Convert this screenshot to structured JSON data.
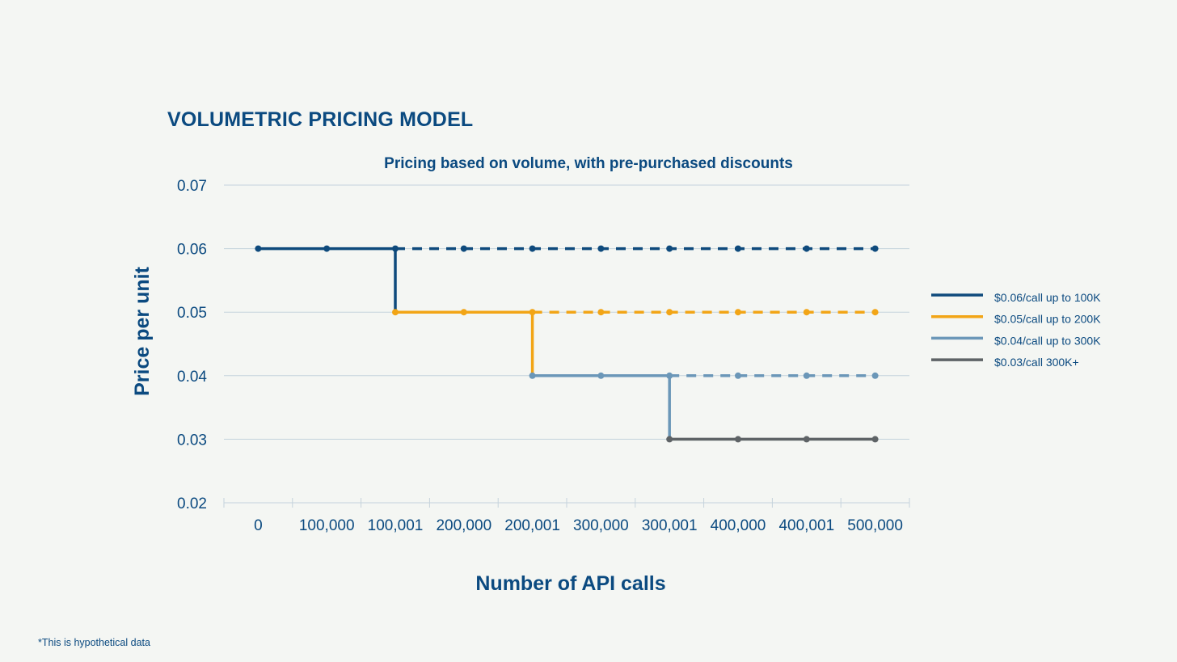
{
  "page": {
    "title": "VOLUMETRIC PRICING MODEL",
    "footnote": "*This is hypothetical data"
  },
  "colors": {
    "background": "#f4f6f3",
    "text": "#0b4a80",
    "grid": "#c5d3dc",
    "series": [
      "#0e4a7c",
      "#f2a516",
      "#6b97b8",
      "#5e6366"
    ]
  },
  "chart_data": {
    "type": "line",
    "title": "Pricing based on volume, with pre-purchased discounts",
    "xlabel": "Number of API calls",
    "ylabel": "Price per unit",
    "categories": [
      "0",
      "100,000",
      "100,001",
      "200,000",
      "200,001",
      "300,000",
      "300,001",
      "400,000",
      "400,001",
      "500,000"
    ],
    "ylim": [
      0.02,
      0.07
    ],
    "yticks": [
      "0.02",
      "0.03",
      "0.04",
      "0.05",
      "0.06",
      "0.07"
    ],
    "grid": true,
    "legend_position": "right",
    "series": [
      {
        "name": "$0.06/call up to 100K",
        "color": "#0e4a7c",
        "values": [
          0.06,
          0.06,
          0.06,
          0.06,
          0.06,
          0.06,
          0.06,
          0.06,
          0.06,
          0.06
        ],
        "solid_through_index": 2,
        "drop_to": 0.05
      },
      {
        "name": "$0.05/call up to 200K",
        "color": "#f2a516",
        "values": [
          null,
          null,
          0.05,
          0.05,
          0.05,
          0.05,
          0.05,
          0.05,
          0.05,
          0.05
        ],
        "solid_through_index": 4,
        "drop_to": 0.04
      },
      {
        "name": "$0.04/call up to 300K",
        "color": "#6b97b8",
        "values": [
          null,
          null,
          null,
          null,
          0.04,
          0.04,
          0.04,
          0.04,
          0.04,
          0.04
        ],
        "solid_through_index": 6,
        "drop_to": 0.03
      },
      {
        "name": "$0.03/call 300K+",
        "color": "#5e6366",
        "values": [
          null,
          null,
          null,
          null,
          null,
          null,
          0.03,
          0.03,
          0.03,
          0.03
        ],
        "solid_through_index": 9,
        "drop_to": null
      }
    ]
  }
}
